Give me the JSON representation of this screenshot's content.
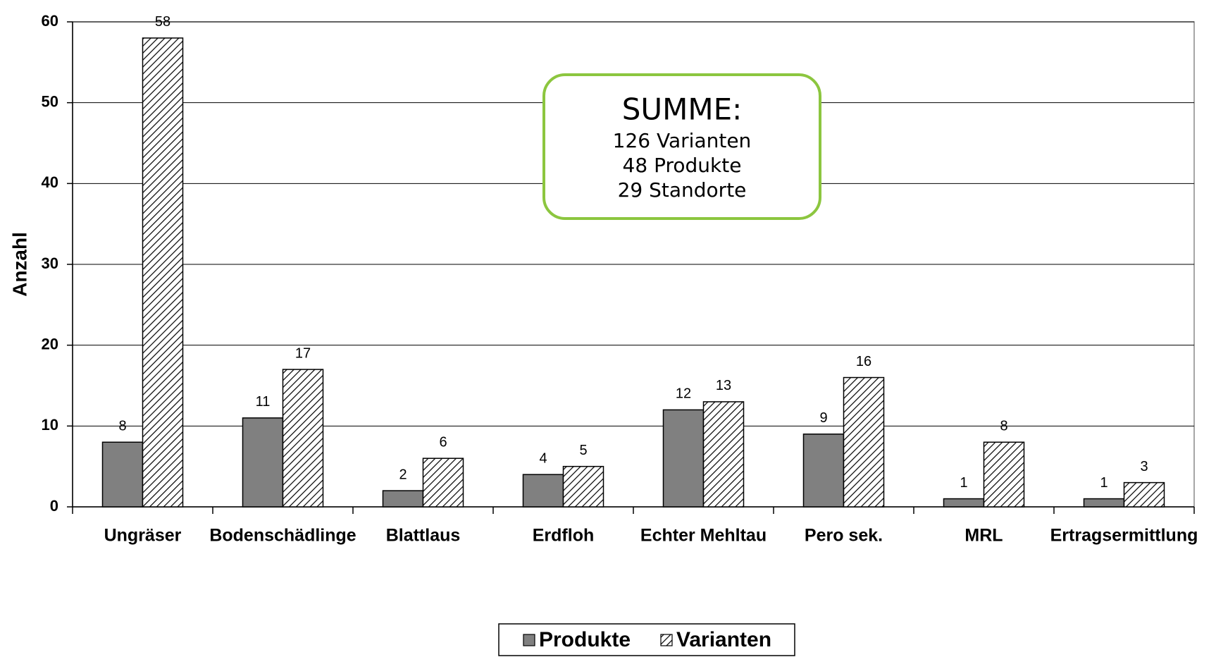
{
  "chart_data": {
    "type": "bar",
    "y_label": "Anzahl",
    "categories": [
      "Ungräser",
      "Bodenschädlinge",
      "Blattlaus",
      "Erdfloh",
      "Echter Mehltau",
      "Pero sek.",
      "MRL",
      "Ertragsermittlung"
    ],
    "series": [
      {
        "name": "Produkte",
        "color": "#808080",
        "hatch": false,
        "values": [
          8,
          11,
          2,
          4,
          12,
          9,
          1,
          1
        ]
      },
      {
        "name": "Varianten",
        "color": "#000000",
        "hatch": true,
        "values": [
          58,
          17,
          6,
          5,
          13,
          16,
          8,
          3
        ]
      }
    ],
    "ylim": [
      0,
      60
    ],
    "yticks": [
      0,
      10,
      20,
      30,
      40,
      50,
      60
    ],
    "grid": true,
    "legend": "bottom",
    "annotation": [
      "SUMME:",
      "126 Varianten",
      "48 Produkte",
      "29 Standorte"
    ],
    "annotation_color": "#8cc63f"
  }
}
